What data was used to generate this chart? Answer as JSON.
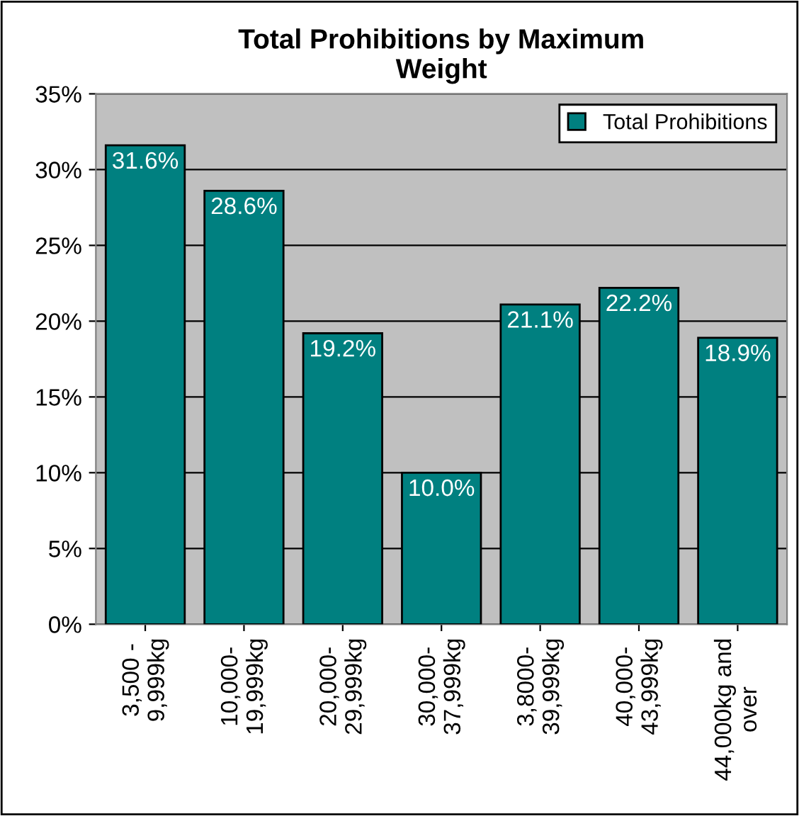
{
  "chart_data": {
    "type": "bar",
    "title": "Total Prohibitions by Maximum\nWeight",
    "categories": [
      "3,500 -\n9,999kg",
      "10,000-\n19,999kg",
      "20,000-\n29,999kg",
      "30,000-\n37,999kg",
      "3,8000-\n39,999kg",
      "40,000-\n43,999kg",
      "44,000kg and\nover"
    ],
    "series": [
      {
        "name": "Total Prohibitions",
        "color": "#008080",
        "values": [
          31.6,
          28.6,
          19.2,
          10.0,
          21.1,
          22.2,
          18.9
        ],
        "value_labels": [
          "31.6%",
          "28.6%",
          "19.2%",
          "10.0%",
          "21.1%",
          "22.2%",
          "18.9%"
        ]
      }
    ],
    "ylim": [
      0,
      35
    ],
    "yticks": [
      {
        "value": 0,
        "label": "0%"
      },
      {
        "value": 5,
        "label": "5%"
      },
      {
        "value": 10,
        "label": "10%"
      },
      {
        "value": 15,
        "label": "15%"
      },
      {
        "value": 20,
        "label": "20%"
      },
      {
        "value": 25,
        "label": "25%"
      },
      {
        "value": 30,
        "label": "30%"
      },
      {
        "value": 35,
        "label": "35%"
      }
    ],
    "grid": "y",
    "legend": "top right"
  }
}
